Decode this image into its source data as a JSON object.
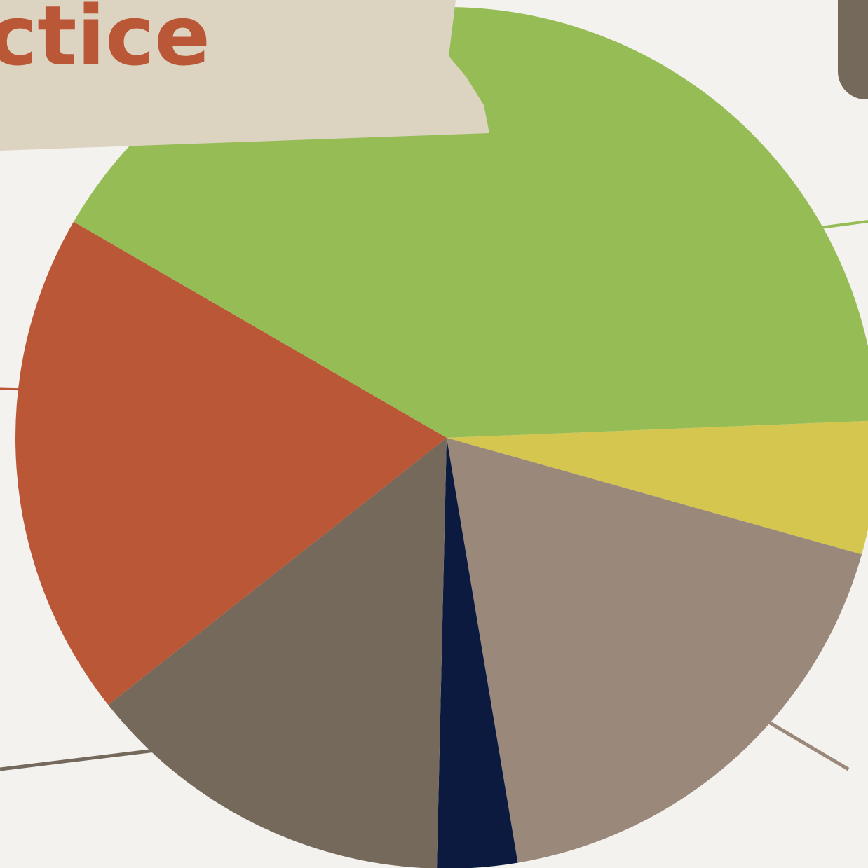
{
  "chart_data": {
    "type": "pie",
    "title": "ctice",
    "values": [
      41,
      5,
      18,
      3,
      14,
      19
    ],
    "colors": [
      "#96bd55",
      "#d5c64f",
      "#9a897a",
      "#0b1a3e",
      "#75695b",
      "#ba5736"
    ]
  }
}
